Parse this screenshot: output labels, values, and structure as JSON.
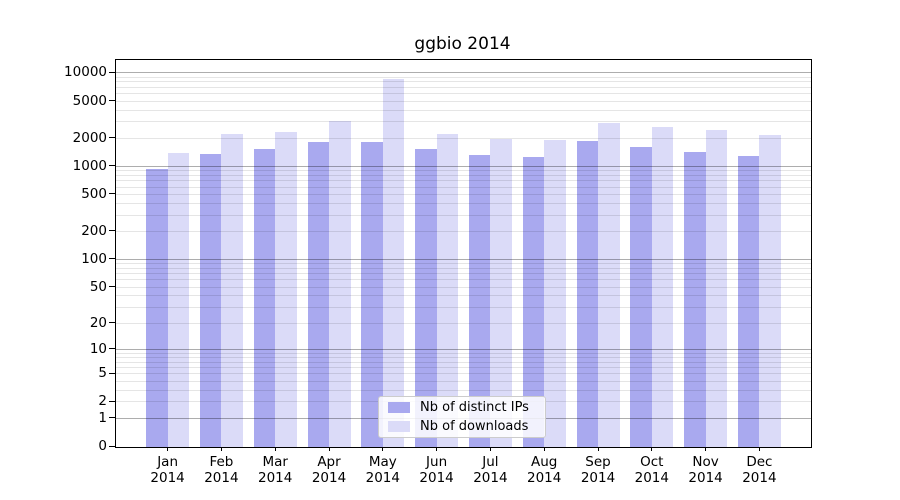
{
  "chart_data": {
    "type": "bar",
    "title": "ggbio 2014",
    "year": "2014",
    "months": [
      "Jan",
      "Feb",
      "Mar",
      "Apr",
      "May",
      "Jun",
      "Jul",
      "Aug",
      "Sep",
      "Oct",
      "Nov",
      "Dec"
    ],
    "series": [
      {
        "name": "Nb of distinct IPs",
        "color": "#a9a9ef",
        "values": [
          930,
          1330,
          1530,
          1800,
          1780,
          1510,
          1300,
          1240,
          1850,
          1590,
          1400,
          1280
        ]
      },
      {
        "name": "Nb of downloads",
        "color": "#dbdbf8",
        "values": [
          1380,
          2170,
          2320,
          3040,
          8500,
          2170,
          1920,
          1890,
          2890,
          2600,
          2420,
          2140
        ]
      }
    ],
    "y_axis": {
      "scale": "log10(value+1)",
      "tick_labels": [
        0,
        1,
        2,
        5,
        10,
        20,
        50,
        100,
        200,
        500,
        1000,
        2000,
        5000,
        10000
      ],
      "grid_major": [
        1,
        10,
        100,
        1000,
        10000
      ],
      "grid_minor_bases": [
        1,
        10,
        100,
        1000
      ],
      "range_top": 13900
    },
    "legend": {
      "position": "lower-center"
    },
    "grid": "on"
  }
}
